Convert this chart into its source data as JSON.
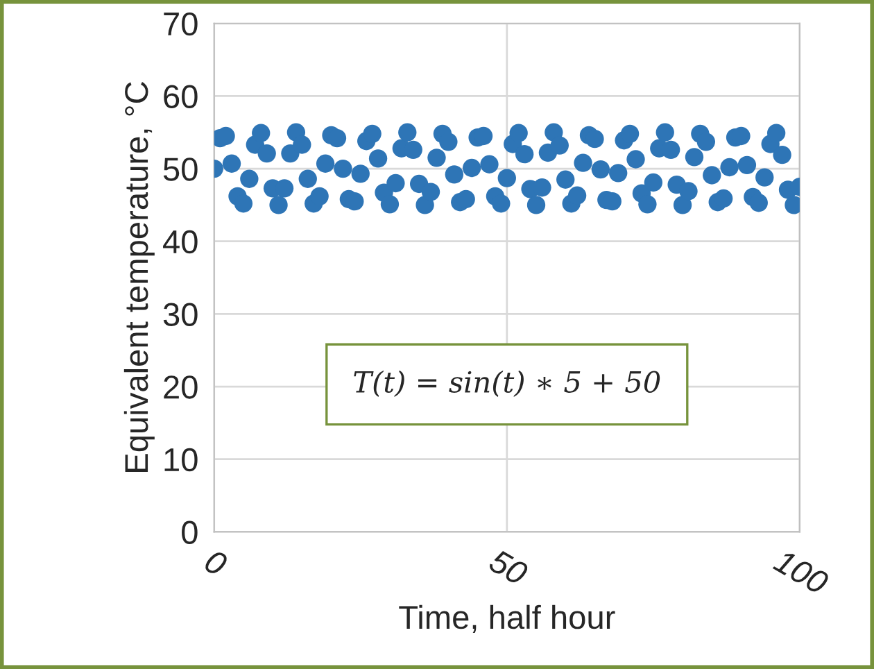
{
  "chart_data": {
    "type": "scatter",
    "xlabel": "Time, half hour",
    "ylabel": "Equivalent temperature, °C",
    "annotations": [
      "T(t) = sin(t) ∗ 5 + 50"
    ],
    "x": [
      0,
      1,
      2,
      3,
      4,
      5,
      6,
      7,
      8,
      9,
      10,
      11,
      12,
      13,
      14,
      15,
      16,
      17,
      18,
      19,
      20,
      21,
      22,
      23,
      24,
      25,
      26,
      27,
      28,
      29,
      30,
      31,
      32,
      33,
      34,
      35,
      36,
      37,
      38,
      39,
      40,
      41,
      42,
      43,
      44,
      45,
      46,
      47,
      48,
      49,
      50,
      51,
      52,
      53,
      54,
      55,
      56,
      57,
      58,
      59,
      60,
      61,
      62,
      63,
      64,
      65,
      66,
      67,
      68,
      69,
      70,
      71,
      72,
      73,
      74,
      75,
      76,
      77,
      78,
      79,
      80,
      81,
      82,
      83,
      84,
      85,
      86,
      87,
      88,
      89,
      90,
      91,
      92,
      93,
      94,
      95,
      96,
      97,
      98,
      99,
      100
    ],
    "series": [
      {
        "color": "#2e75b6",
        "values": [
          50.0,
          54.2,
          54.5,
          50.7,
          46.2,
          45.2,
          48.6,
          53.3,
          54.9,
          52.1,
          47.3,
          45.0,
          47.3,
          52.1,
          55.0,
          53.3,
          48.6,
          45.2,
          46.2,
          50.7,
          54.6,
          54.2,
          50.0,
          45.8,
          45.5,
          49.3,
          53.8,
          54.8,
          51.4,
          46.7,
          45.1,
          48.0,
          52.8,
          55.0,
          52.6,
          47.9,
          45.0,
          46.8,
          51.5,
          54.8,
          53.7,
          49.2,
          45.4,
          45.8,
          50.1,
          54.3,
          54.5,
          50.6,
          46.2,
          45.2,
          48.7,
          53.4,
          54.9,
          52.0,
          47.2,
          45.0,
          47.4,
          52.2,
          55.0,
          53.2,
          48.5,
          45.2,
          46.3,
          50.8,
          54.6,
          54.1,
          49.9,
          45.7,
          45.5,
          49.4,
          53.9,
          54.8,
          51.3,
          46.6,
          45.1,
          48.1,
          52.8,
          55.0,
          52.6,
          47.8,
          45.0,
          46.9,
          51.6,
          54.8,
          53.7,
          49.1,
          45.4,
          45.9,
          50.2,
          54.3,
          54.5,
          50.5,
          46.1,
          45.3,
          48.8,
          53.4,
          54.9,
          51.9,
          47.1,
          45.0,
          47.5
        ]
      }
    ],
    "xlim": [
      0,
      100
    ],
    "xticks": [
      0,
      50,
      100
    ],
    "ylim": [
      0,
      70
    ],
    "yticks": [
      0,
      10,
      20,
      30,
      40,
      50,
      60,
      70
    ],
    "grid": true,
    "marker": "circle"
  }
}
